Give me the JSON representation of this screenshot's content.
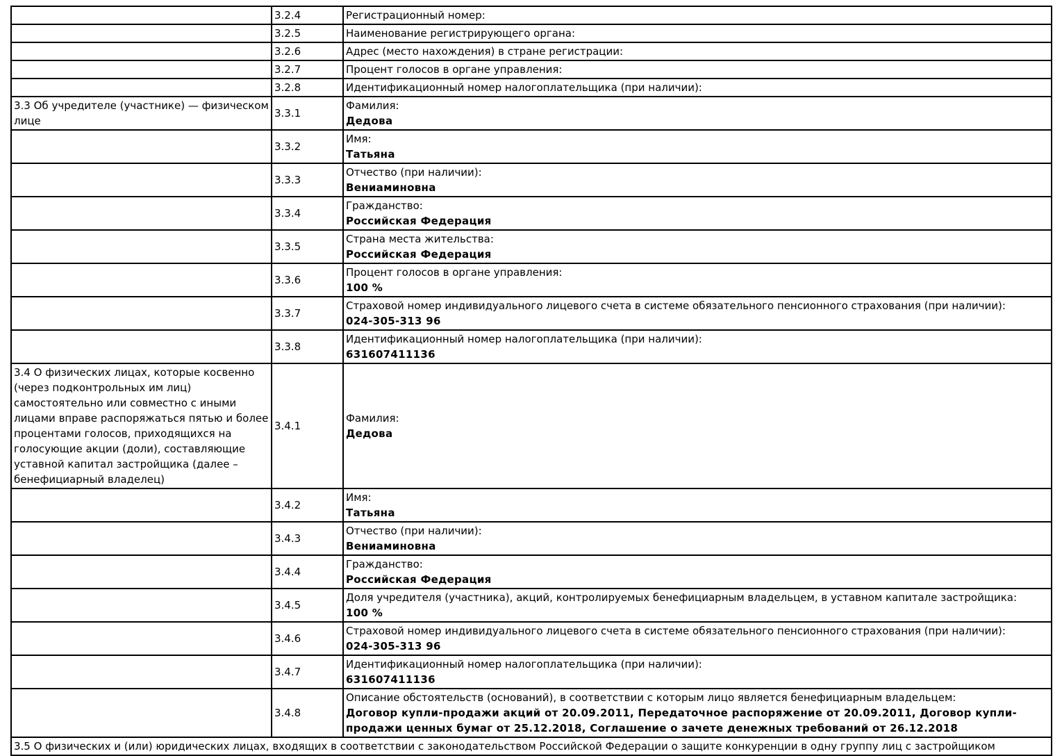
{
  "table": {
    "rows": [
      {
        "section": "",
        "num": "3.2.4",
        "label": "Регистрационный номер:",
        "value": ""
      },
      {
        "section": "",
        "num": "3.2.5",
        "label": "Наименование регистрирующего органа:",
        "value": ""
      },
      {
        "section": "",
        "num": "3.2.6",
        "label": "Адрес (место нахождения) в стране регистрации:",
        "value": ""
      },
      {
        "section": "",
        "num": "3.2.7",
        "label": "Процент голосов в органе управления:",
        "value": ""
      },
      {
        "section": "",
        "num": "3.2.8",
        "label": "Идентификационный номер налогоплательщика (при наличии):",
        "value": ""
      },
      {
        "section": "3.3 Об учредителе (участнике) — физическом лице",
        "num": "3.3.1",
        "label": "Фамилия:",
        "value": "Дедова"
      },
      {
        "section": "",
        "num": "3.3.2",
        "label": "Имя:",
        "value": "Татьяна"
      },
      {
        "section": "",
        "num": "3.3.3",
        "label": "Отчество (при наличии):",
        "value": "Вениаминовна"
      },
      {
        "section": "",
        "num": "3.3.4",
        "label": "Гражданство:",
        "value": "Российская Федерация"
      },
      {
        "section": "",
        "num": "3.3.5",
        "label": "Страна места жительства:",
        "value": "Российская Федерация"
      },
      {
        "section": "",
        "num": "3.3.6",
        "label": "Процент голосов в органе управления:",
        "value": "100 %"
      },
      {
        "section": "",
        "num": "3.3.7",
        "label": "Страховой номер индивидуального лицевого счета в системе обязательного пенсионного страхования (при наличии):",
        "value": "024-305-313 96"
      },
      {
        "section": "",
        "num": "3.3.8",
        "label": "Идентификационный номер налогоплательщика (при наличии):",
        "value": "631607411136"
      },
      {
        "section": "3.4 О физических лицах, которые косвенно (через подконтрольных им лиц) самостоятельно или совместно с иными лицами вправе распоряжаться пятью и более процентами голосов, приходящихся на голосующие акции (доли), составляющие уставной капитал застройщика (далее – бенефициарный владелец)",
        "num": "3.4.1",
        "label": "Фамилия:",
        "value": "Дедова"
      },
      {
        "section": "",
        "num": "3.4.2",
        "label": "Имя:",
        "value": "Татьяна"
      },
      {
        "section": "",
        "num": "3.4.3",
        "label": "Отчество (при наличии):",
        "value": "Вениаминовна"
      },
      {
        "section": "",
        "num": "3.4.4",
        "label": "Гражданство:",
        "value": "Российская Федерация"
      },
      {
        "section": "",
        "num": "3.4.5",
        "label": "Доля учредителя (участника), акций, контролируемых бенефициарным владельцем, в уставном капитале застройщика:",
        "value": "100 %"
      },
      {
        "section": "",
        "num": "3.4.6",
        "label": "Страховой номер индивидуального лицевого счета в системе обязательного пенсионного страхования (при наличии):",
        "value": "024-305-313 96"
      },
      {
        "section": "",
        "num": "3.4.7",
        "label": "Идентификационный номер налогоплательщика (при наличии):",
        "value": "631607411136"
      },
      {
        "section": "",
        "num": "3.4.8",
        "label": "Описание обстоятельств (оснований), в соответствии с которым лицо является бенефициарным владельцем:",
        "value": "Договор купли-продажи акций от 20.09.2011, Передаточное распоряжение от 20.09.2011, Договор купли-продажи ценных бумаг от 25.12.2018, Соглашение о зачете денежных требований от 26.12.2018"
      }
    ],
    "full_width_row": "3.5 О физических и (или) юридических лицах, входящих в соответствии с законодательством Российской Федерации о защите конкуренции в одну группу лиц с застройщиком"
  }
}
